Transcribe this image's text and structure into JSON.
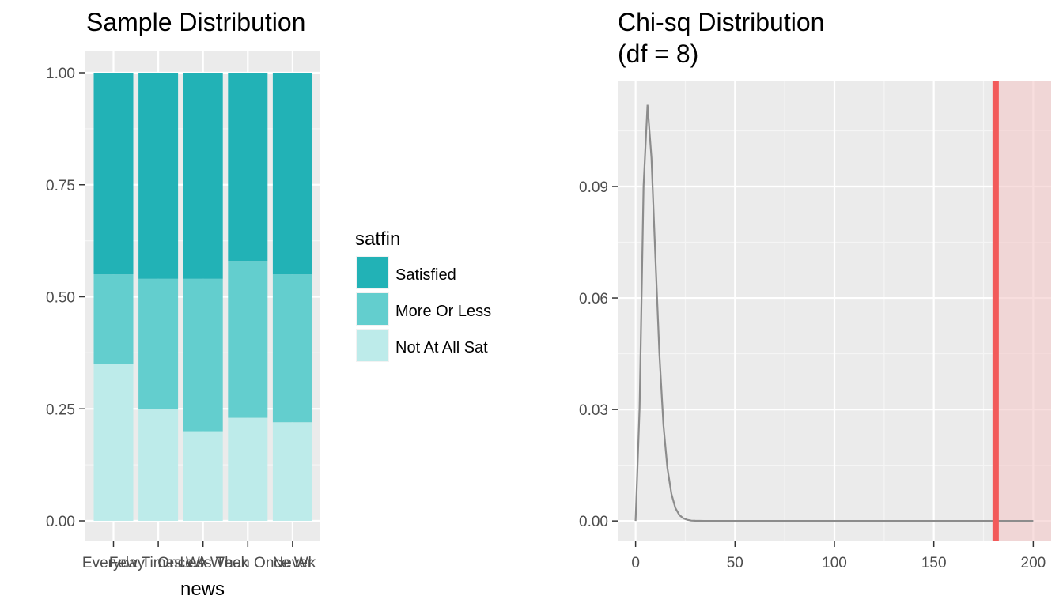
{
  "chart_data": [
    {
      "type": "bar",
      "stacked": true,
      "title": "Sample Distribution",
      "xlabel": "news",
      "ylabel": "",
      "ylim": [
        0,
        1
      ],
      "yticks": [
        "0.00",
        "0.25",
        "0.50",
        "0.75",
        "1.00"
      ],
      "categories": [
        "Everyday",
        "Few Times Wk",
        "Once A Week",
        "Less Than Once Wk",
        "Never"
      ],
      "series": [
        {
          "name": "Not At All Sat",
          "color": "#bdebea",
          "values": [
            0.35,
            0.25,
            0.2,
            0.23,
            0.22
          ]
        },
        {
          "name": "More Or Less",
          "color": "#63cece",
          "values": [
            0.2,
            0.29,
            0.34,
            0.35,
            0.33
          ]
        },
        {
          "name": "Satisfied",
          "color": "#22b2b6",
          "values": [
            0.45,
            0.46,
            0.46,
            0.42,
            0.45
          ]
        }
      ],
      "legend": {
        "title": "satfin",
        "entries": [
          "Satisfied",
          "More Or Less",
          "Not At All Sat"
        ],
        "position": "right"
      }
    },
    {
      "type": "line",
      "title": "Chi-sq Distribution",
      "subtitle": "(df = 8)",
      "xlabel": "",
      "ylabel": "",
      "xlim": [
        -9,
        209
      ],
      "ylim": [
        -0.0055,
        0.1185
      ],
      "xticks": [
        "0",
        "50",
        "100",
        "150",
        "200"
      ],
      "yticks": [
        "0.00",
        "0.03",
        "0.06",
        "0.09"
      ],
      "x": [
        0,
        2,
        4,
        6,
        8,
        10,
        12,
        14,
        16,
        18,
        20,
        22,
        24,
        26,
        28,
        30,
        35,
        40,
        200
      ],
      "y": [
        0,
        0.0306,
        0.0902,
        0.112,
        0.0977,
        0.0702,
        0.0446,
        0.0259,
        0.0143,
        0.0073,
        0.0035,
        0.0016,
        0.0007,
        0.0003,
        0.0001,
        5e-05,
        5e-06,
        0.0,
        0.0
      ],
      "line_color": "#8c8c8c",
      "observed_statistic": 181.1,
      "observed_color": "#f25a5a",
      "shade_color": "#f4c8c8"
    }
  ]
}
